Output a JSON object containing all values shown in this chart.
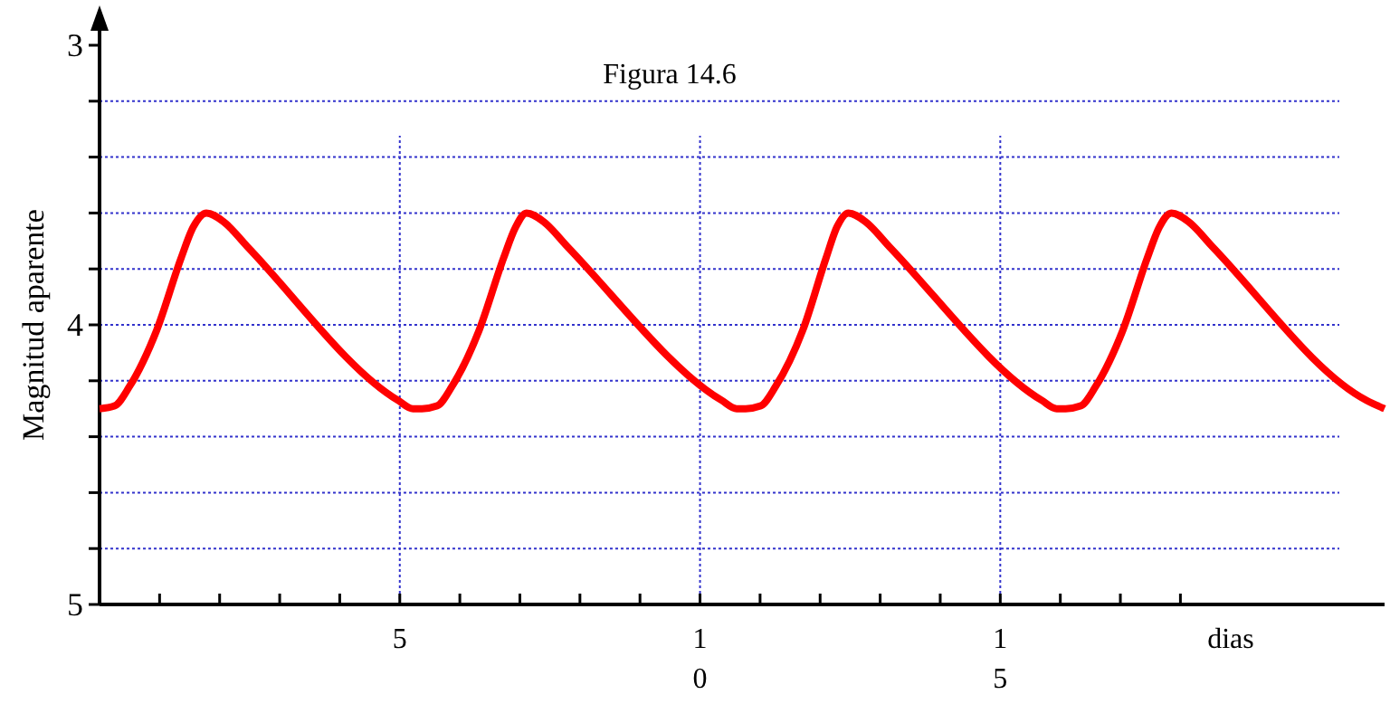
{
  "chart_data": {
    "type": "line",
    "title": "Figura 14.6",
    "xlabel": "dias",
    "ylabel": "Magnitud aparente",
    "xlim": [
      0,
      21.4
    ],
    "ylim": [
      5,
      3
    ],
    "xticks": [
      {
        "value": 1,
        "label": null
      },
      {
        "value": 2,
        "label": null
      },
      {
        "value": 3,
        "label": null
      },
      {
        "value": 4,
        "label": null
      },
      5,
      {
        "value": 6,
        "label": null
      },
      {
        "value": 7,
        "label": null
      },
      {
        "value": 8,
        "label": null
      },
      {
        "value": 9,
        "label": null
      },
      10,
      {
        "value": 11,
        "label": null
      },
      {
        "value": 12,
        "label": null
      },
      {
        "value": 13,
        "label": null
      },
      {
        "value": 14,
        "label": null
      },
      15,
      {
        "value": 16,
        "label": null
      },
      {
        "value": 17,
        "label": null
      },
      {
        "value": 18,
        "label": null
      }
    ],
    "yticks": [
      3,
      {
        "value": 3.2,
        "label": null
      },
      {
        "value": 3.4,
        "label": null
      },
      {
        "value": 3.6,
        "label": null
      },
      {
        "value": 3.8,
        "label": null
      },
      4,
      {
        "value": 4.2,
        "label": null
      },
      {
        "value": 4.4,
        "label": null
      },
      {
        "value": 4.6,
        "label": null
      },
      {
        "value": 4.8,
        "label": null
      },
      5
    ],
    "grid": true,
    "marker": "none",
    "line_style": "solid",
    "series": [
      {
        "color": "#ff0000",
        "x": [
          0,
          0.25,
          0.5,
          0.95,
          1.36,
          1.56,
          1.78,
          2.06,
          2.46,
          4.97,
          5.22,
          5.37,
          5.62,
          5.87,
          6.32,
          6.73,
          6.93,
          7.11,
          7.39,
          7.79,
          10.36,
          10.61,
          10.76,
          11.01,
          11.26,
          11.71,
          12.1,
          12.28,
          12.47,
          12.75,
          13.15,
          15.69,
          15.94,
          16.09,
          16.34,
          16.59,
          17.04,
          17.45,
          17.65,
          17.85,
          18.13,
          18.53,
          21.1,
          21.4
        ],
        "values": [
          4.3,
          4.29,
          4.22,
          4.02,
          3.76,
          3.65,
          3.6,
          3.63,
          3.72,
          4.27,
          4.3,
          4.3,
          4.29,
          4.22,
          4.02,
          3.76,
          3.65,
          3.6,
          3.63,
          3.72,
          4.27,
          4.3,
          4.3,
          4.29,
          4.22,
          4.02,
          3.76,
          3.65,
          3.6,
          3.63,
          3.72,
          4.27,
          4.3,
          4.3,
          4.29,
          4.22,
          4.02,
          3.76,
          3.65,
          3.6,
          3.63,
          3.72,
          4.27,
          4.3
        ]
      }
    ]
  }
}
